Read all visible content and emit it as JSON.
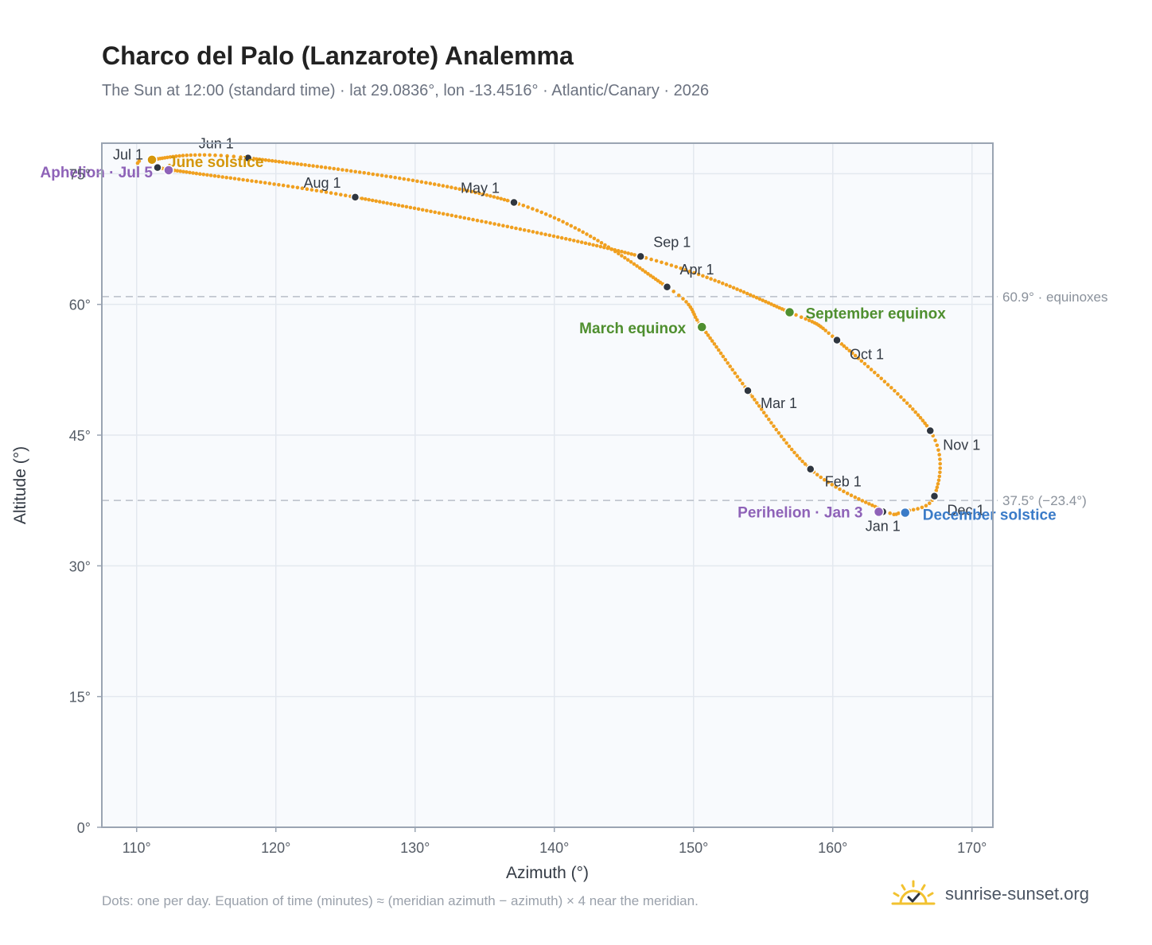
{
  "title": "Charco del Palo (Lanzarote) Analemma",
  "subtitle": "The Sun at 12:00 (standard time) · lat 29.0836°, lon -13.4516° · Atlantic/Canary · 2026",
  "footnote": "Dots: one per day. Equation of time (minutes) ≈ (meridian azimuth − azimuth) × 4 near the meridian.",
  "brand": {
    "name": "sunrise-sunset.org",
    "icon": "sun-logo-icon"
  },
  "colors": {
    "path": "#f0a020",
    "month_marker": "#2f3640",
    "equinox": "#4f8f2f",
    "june_solstice": "#d4960a",
    "december_solstice": "#3a7bc8",
    "apsis": "#8e62b8",
    "reference_line": "#b8bec8"
  },
  "chart_data": {
    "type": "scatter",
    "xlabel": "Azimuth (°)",
    "ylabel": "Altitude (°)",
    "xlim": [
      107.5,
      171.5
    ],
    "ylim": [
      0,
      78.5
    ],
    "xticks": [
      {
        "value": 110,
        "label": "110°"
      },
      {
        "value": 120,
        "label": "120°"
      },
      {
        "value": 130,
        "label": "130°"
      },
      {
        "value": 140,
        "label": "140°"
      },
      {
        "value": 150,
        "label": "150°"
      },
      {
        "value": 160,
        "label": "160°"
      },
      {
        "value": 170,
        "label": "170°"
      }
    ],
    "yticks": [
      {
        "value": 0,
        "label": "0°"
      },
      {
        "value": 15,
        "label": "15°"
      },
      {
        "value": 30,
        "label": "30°"
      },
      {
        "value": 45,
        "label": "45°"
      },
      {
        "value": 60,
        "label": "60°"
      },
      {
        "value": 75,
        "label": "75°"
      }
    ],
    "grid": true,
    "reference_lines": [
      {
        "y": 60.9,
        "label": "60.9° · equinoxes"
      },
      {
        "y": 37.5,
        "label": "37.5° (−23.4°)"
      }
    ],
    "series": [
      {
        "points": [
          [
            165.0,
            36.2
          ],
          [
            167.3,
            38.0
          ],
          [
            167.0,
            45.5
          ],
          [
            160.3,
            55.9
          ],
          [
            156.9,
            59.1
          ],
          [
            146.2,
            65.5
          ],
          [
            125.7,
            72.3
          ],
          [
            111.5,
            75.7
          ],
          [
            111.1,
            76.6
          ],
          [
            118.0,
            76.8
          ],
          [
            137.1,
            71.7
          ],
          [
            148.1,
            62.0
          ],
          [
            150.6,
            57.4
          ],
          [
            153.9,
            50.1
          ],
          [
            158.4,
            41.1
          ],
          [
            163.6,
            36.4
          ],
          [
            165.0,
            36.2
          ]
        ]
      }
    ],
    "month_markers": [
      {
        "label": "Jan 1",
        "x": 163.6,
        "y": 36.2
      },
      {
        "label": "Feb 1",
        "x": 158.4,
        "y": 41.1
      },
      {
        "label": "Mar 1",
        "x": 153.9,
        "y": 50.1
      },
      {
        "label": "Apr 1",
        "x": 148.1,
        "y": 62.0
      },
      {
        "label": "May 1",
        "x": 137.1,
        "y": 71.7
      },
      {
        "label": "Jun 1",
        "x": 118.0,
        "y": 76.8
      },
      {
        "label": "Jul 1",
        "x": 111.5,
        "y": 75.7
      },
      {
        "label": "Aug 1",
        "x": 125.7,
        "y": 72.3
      },
      {
        "label": "Sep 1",
        "x": 146.2,
        "y": 65.5
      },
      {
        "label": "Oct 1",
        "x": 160.3,
        "y": 55.9
      },
      {
        "label": "Nov 1",
        "x": 167.0,
        "y": 45.5
      },
      {
        "label": "Dec 1",
        "x": 167.3,
        "y": 38.0
      }
    ],
    "events": [
      {
        "label": "March equinox",
        "x": 150.6,
        "y": 57.4,
        "kind": "equinox"
      },
      {
        "label": "September equinox",
        "x": 156.9,
        "y": 59.1,
        "kind": "equinox"
      },
      {
        "label": "June solstice",
        "x": 111.1,
        "y": 76.6,
        "kind": "june_solstice"
      },
      {
        "label": "December solstice",
        "x": 165.2,
        "y": 36.1,
        "kind": "december_solstice"
      },
      {
        "label": "Aphelion · Jul 5",
        "x": 112.3,
        "y": 75.4,
        "kind": "apsis"
      },
      {
        "label": "Perihelion · Jan 3",
        "x": 163.3,
        "y": 36.2,
        "kind": "apsis"
      }
    ]
  }
}
